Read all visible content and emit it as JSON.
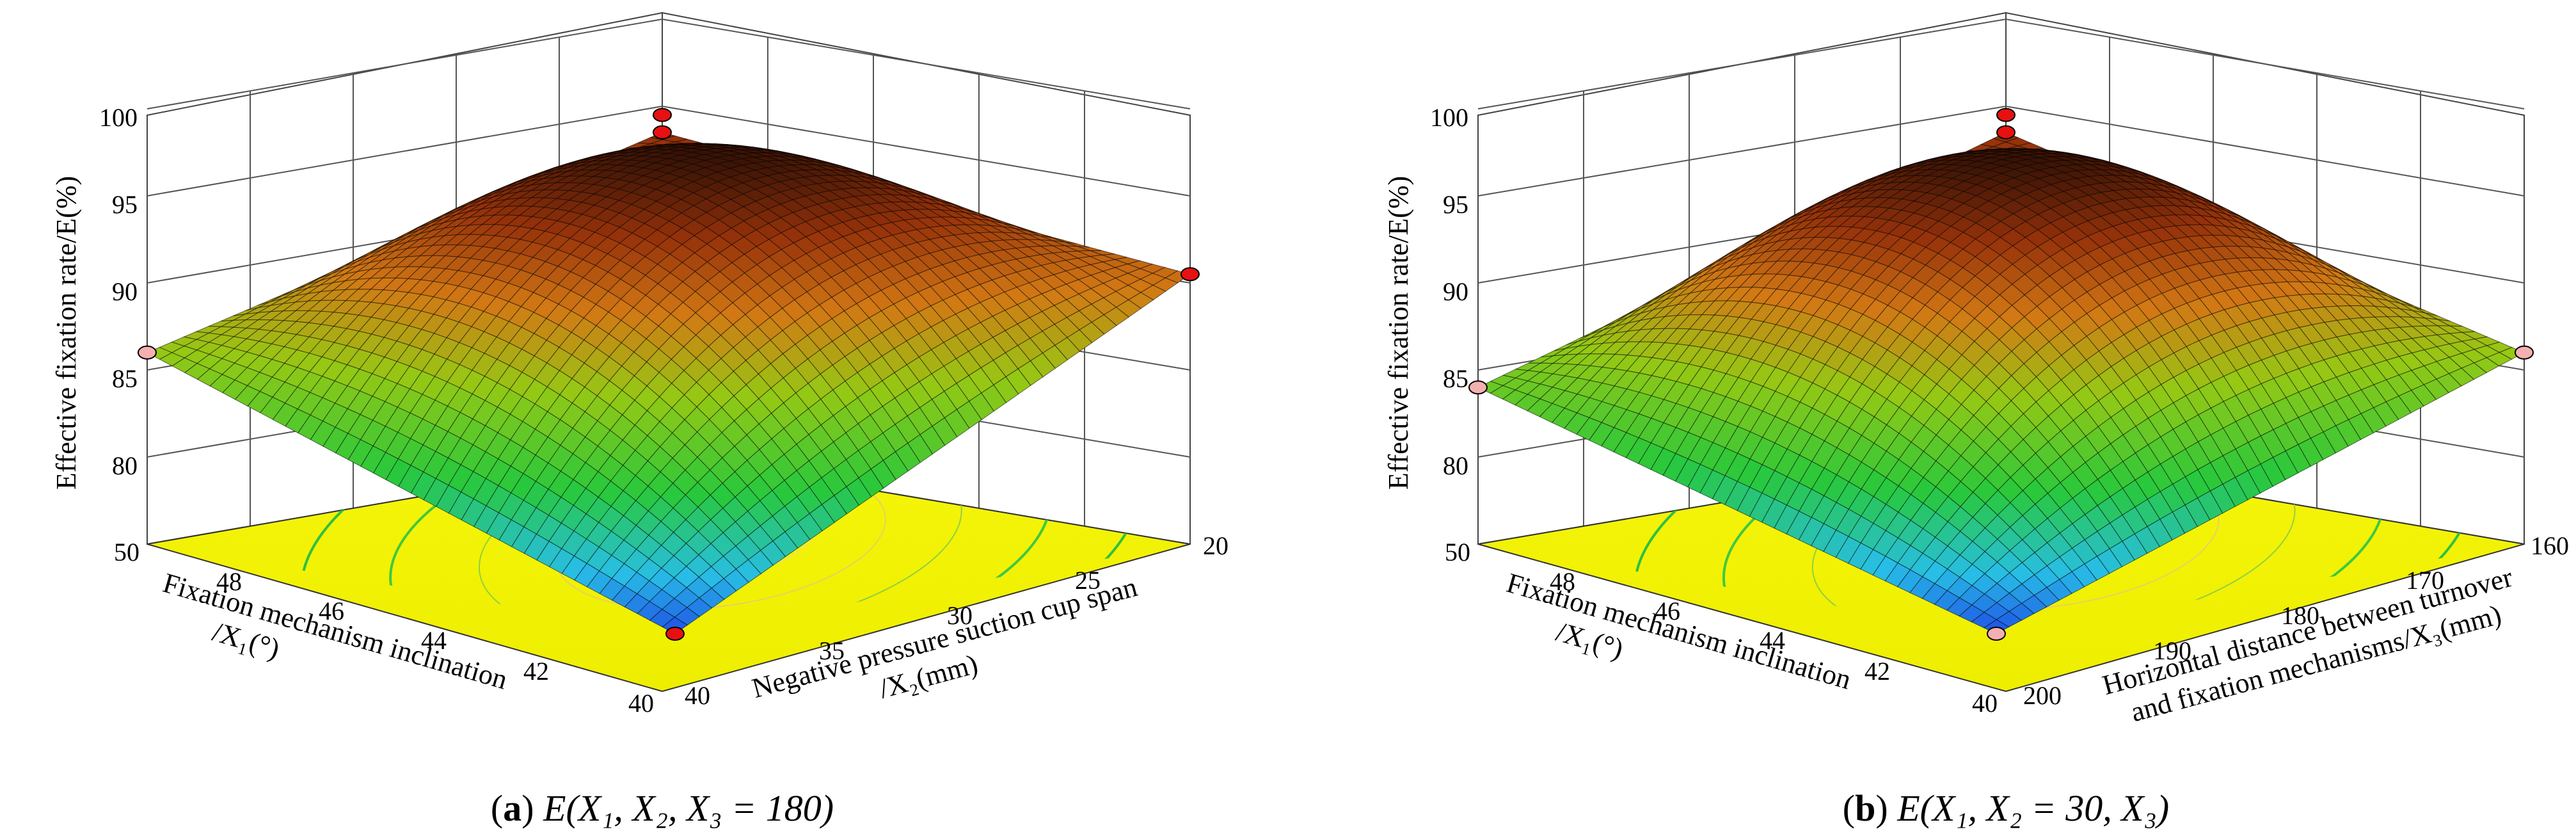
{
  "chart_data": [
    {
      "type": "3d-surface",
      "panel": "a",
      "caption": {
        "label": "a",
        "expr": "E(X₁, X₂, X₃ = 180)"
      },
      "zlabel": "Effective fixation  rate/E(%)",
      "zticks": [
        "80",
        "85",
        "90",
        "95",
        "100"
      ],
      "zlim": [
        75,
        100
      ],
      "xlabel": [
        "Fixation mechanism inclination",
        "/X₁(°)"
      ],
      "xticks": [
        "50",
        "48",
        "46",
        "44",
        "42",
        "40"
      ],
      "xlim": [
        40,
        50
      ],
      "ylabel": [
        "Negative pressure suction cup span",
        "/X₂(mm)"
      ],
      "yticks": [
        "20",
        "25",
        "30",
        "35",
        "40"
      ],
      "ylim": [
        20,
        40
      ],
      "design_points_z": [
        86,
        94.5,
        93.5,
        90.5,
        75
      ]
    },
    {
      "type": "3d-surface",
      "panel": "b",
      "caption": {
        "label": "b",
        "expr": "E(X₁, X₂ = 30, X₃)"
      },
      "zlabel": "Effective fixation  rate/E(%)",
      "zticks": [
        "80",
        "85",
        "90",
        "95",
        "100"
      ],
      "zlim": [
        75,
        100
      ],
      "xlabel": [
        "Fixation mechanism inclination",
        "/X₁(°)"
      ],
      "xticks": [
        "50",
        "48",
        "46",
        "44",
        "42",
        "40"
      ],
      "xlim": [
        40,
        50
      ],
      "ylabel": [
        "Horizontal distance between turnover",
        "and fixation mechanisms/X₃(mm)"
      ],
      "yticks": [
        "160",
        "170",
        "180",
        "190",
        "200"
      ],
      "ylim": [
        160,
        200
      ],
      "design_points_z": [
        84,
        94.5,
        93.5,
        86,
        75
      ]
    }
  ]
}
